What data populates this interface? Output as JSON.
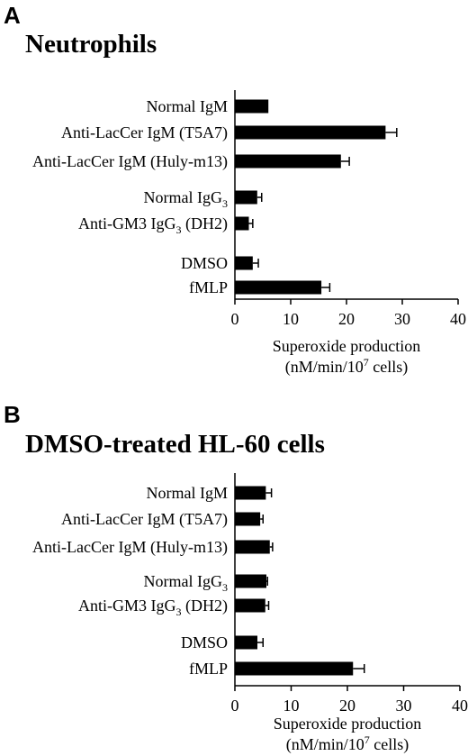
{
  "chart_data": [
    {
      "type": "bar",
      "orientation": "horizontal",
      "panel_label": "A",
      "title": "Neutrophils",
      "categories": [
        {
          "text": "Normal IgM",
          "sub": "",
          "after": ""
        },
        {
          "text": "Anti-LacCer IgM (T5A7)",
          "sub": "",
          "after": ""
        },
        {
          "text": "Anti-LacCer IgM (Huly-m13)",
          "sub": "",
          "after": ""
        },
        {
          "text": "Normal IgG",
          "sub": "3",
          "after": ""
        },
        {
          "text": "Anti-GM3 IgG",
          "sub": "3",
          "after": " (DH2)"
        },
        {
          "text": "DMSO",
          "sub": "",
          "after": ""
        },
        {
          "text": "fMLP",
          "sub": "",
          "after": ""
        }
      ],
      "values": [
        6,
        27,
        19,
        4,
        2.5,
        3.2,
        15.5
      ],
      "errors": [
        0,
        2,
        1.5,
        0.8,
        0.7,
        1,
        1.5
      ],
      "groups": [
        [
          0,
          1,
          2
        ],
        [
          3,
          4
        ],
        [
          5,
          6
        ]
      ],
      "xlim": [
        0,
        40
      ],
      "ticks": [
        "0",
        "10",
        "20",
        "30",
        "40"
      ],
      "xlabel": {
        "line1": "Superoxide production",
        "line2_pre": "(nM/min/10",
        "line2_sup": "7",
        "line2_post": " cells)"
      }
    },
    {
      "type": "bar",
      "orientation": "horizontal",
      "panel_label": "B",
      "title": "DMSO-treated HL-60 cells",
      "categories": [
        {
          "text": "Normal IgM",
          "sub": "",
          "after": ""
        },
        {
          "text": "Anti-LacCer IgM (T5A7)",
          "sub": "",
          "after": ""
        },
        {
          "text": "Anti-LacCer IgM (Huly-m13)",
          "sub": "",
          "after": ""
        },
        {
          "text": "Normal IgG",
          "sub": "3",
          "after": ""
        },
        {
          "text": "Anti-GM3 IgG",
          "sub": "3",
          "after": " (DH2)"
        },
        {
          "text": "DMSO",
          "sub": "",
          "after": ""
        },
        {
          "text": "fMLP",
          "sub": "",
          "after": ""
        }
      ],
      "values": [
        5.5,
        4.5,
        6.2,
        5.6,
        5.4,
        4,
        21
      ],
      "errors": [
        1,
        0.5,
        0.5,
        0.2,
        0.6,
        1,
        2
      ],
      "groups": [
        [
          0,
          1,
          2
        ],
        [
          3,
          4
        ],
        [
          5,
          6
        ]
      ],
      "xlim": [
        0,
        40
      ],
      "ticks": [
        "0",
        "10",
        "20",
        "30",
        "40"
      ],
      "xlabel": {
        "line1": "Superoxide production",
        "line2_pre": "(nM/min/10",
        "line2_sup": "7",
        "line2_post": " cells)"
      }
    }
  ]
}
